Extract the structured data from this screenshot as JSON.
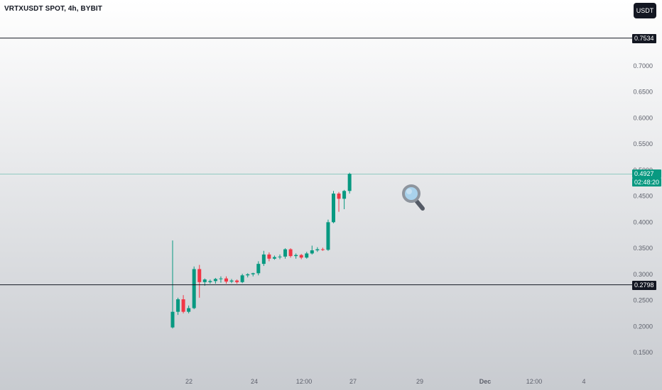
{
  "header": {
    "title": "VRTXUSDT SPOT, 4h, BYBIT",
    "currency": "USDT"
  },
  "colors": {
    "up": "#089981",
    "down": "#f23645",
    "level_line": "#131722",
    "last_price_line": "#089981"
  },
  "icons": {
    "magnifier": "magnifier-icon"
  },
  "chart_data": {
    "type": "candlestick",
    "y_ticks": [
      "0.7000",
      "0.6500",
      "0.6000",
      "0.5500",
      "0.5000",
      "0.4500",
      "0.4000",
      "0.3500",
      "0.3000",
      "0.2500",
      "0.2000",
      "0.1500"
    ],
    "x_ticks": [
      "22",
      "24",
      "12:00",
      "27",
      "29",
      "Dec",
      "12:00",
      "4"
    ],
    "levels": [
      {
        "label": "0.7534",
        "value": 0.7534
      },
      {
        "label": "0.2798",
        "value": 0.2798
      }
    ],
    "last_price": {
      "label": "0.4927",
      "value": 0.4927,
      "countdown": "02:48:20"
    },
    "candles": [
      {
        "o": 0.198,
        "h": 0.365,
        "l": 0.196,
        "c": 0.228
      },
      {
        "o": 0.228,
        "h": 0.255,
        "l": 0.222,
        "c": 0.252
      },
      {
        "o": 0.252,
        "h": 0.26,
        "l": 0.225,
        "c": 0.228
      },
      {
        "o": 0.228,
        "h": 0.24,
        "l": 0.225,
        "c": 0.235
      },
      {
        "o": 0.235,
        "h": 0.315,
        "l": 0.233,
        "c": 0.31
      },
      {
        "o": 0.31,
        "h": 0.318,
        "l": 0.255,
        "c": 0.285
      },
      {
        "o": 0.285,
        "h": 0.292,
        "l": 0.278,
        "c": 0.29
      },
      {
        "o": 0.285,
        "h": 0.29,
        "l": 0.282,
        "c": 0.287
      },
      {
        "o": 0.287,
        "h": 0.293,
        "l": 0.282,
        "c": 0.291
      },
      {
        "o": 0.291,
        "h": 0.296,
        "l": 0.284,
        "c": 0.292
      },
      {
        "o": 0.292,
        "h": 0.296,
        "l": 0.282,
        "c": 0.286
      },
      {
        "o": 0.286,
        "h": 0.291,
        "l": 0.283,
        "c": 0.288
      },
      {
        "o": 0.288,
        "h": 0.29,
        "l": 0.282,
        "c": 0.285
      },
      {
        "o": 0.285,
        "h": 0.301,
        "l": 0.283,
        "c": 0.298
      },
      {
        "o": 0.298,
        "h": 0.302,
        "l": 0.294,
        "c": 0.3
      },
      {
        "o": 0.3,
        "h": 0.303,
        "l": 0.296,
        "c": 0.302
      },
      {
        "o": 0.302,
        "h": 0.325,
        "l": 0.298,
        "c": 0.32
      },
      {
        "o": 0.32,
        "h": 0.345,
        "l": 0.316,
        "c": 0.338
      },
      {
        "o": 0.338,
        "h": 0.342,
        "l": 0.325,
        "c": 0.33
      },
      {
        "o": 0.33,
        "h": 0.336,
        "l": 0.328,
        "c": 0.333
      },
      {
        "o": 0.333,
        "h": 0.338,
        "l": 0.329,
        "c": 0.334
      },
      {
        "o": 0.334,
        "h": 0.35,
        "l": 0.33,
        "c": 0.348
      },
      {
        "o": 0.348,
        "h": 0.35,
        "l": 0.332,
        "c": 0.335
      },
      {
        "o": 0.335,
        "h": 0.34,
        "l": 0.33,
        "c": 0.337
      },
      {
        "o": 0.337,
        "h": 0.339,
        "l": 0.329,
        "c": 0.332
      },
      {
        "o": 0.332,
        "h": 0.343,
        "l": 0.33,
        "c": 0.34
      },
      {
        "o": 0.34,
        "h": 0.355,
        "l": 0.338,
        "c": 0.346
      },
      {
        "o": 0.346,
        "h": 0.352,
        "l": 0.343,
        "c": 0.348
      },
      {
        "o": 0.348,
        "h": 0.351,
        "l": 0.345,
        "c": 0.347
      },
      {
        "o": 0.347,
        "h": 0.405,
        "l": 0.345,
        "c": 0.4
      },
      {
        "o": 0.4,
        "h": 0.46,
        "l": 0.398,
        "c": 0.455
      },
      {
        "o": 0.455,
        "h": 0.458,
        "l": 0.42,
        "c": 0.445
      },
      {
        "o": 0.445,
        "h": 0.462,
        "l": 0.425,
        "c": 0.46
      },
      {
        "o": 0.46,
        "h": 0.495,
        "l": 0.455,
        "c": 0.4927
      }
    ]
  }
}
